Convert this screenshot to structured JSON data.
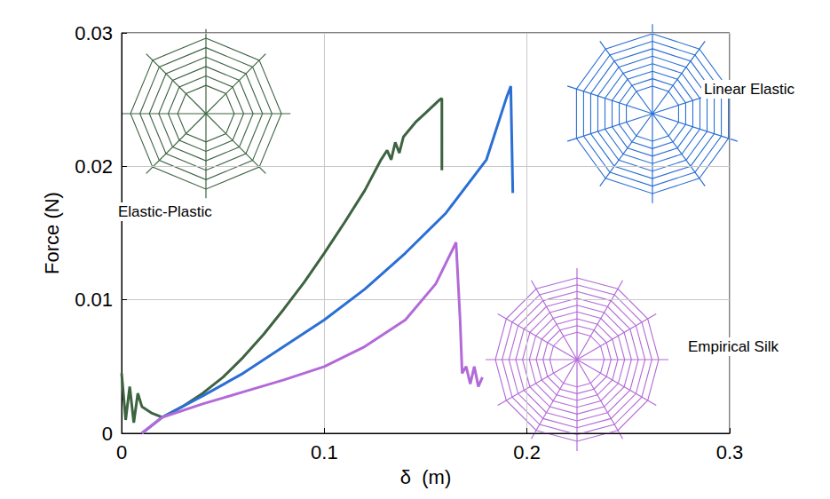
{
  "chart_data": {
    "type": "line",
    "xlabel": "δ  (m)",
    "ylabel": "Force (N)",
    "xlim": [
      0,
      0.3
    ],
    "xticks": [
      0,
      0.1,
      0.2,
      0.3
    ],
    "ylim": [
      0,
      0.03
    ],
    "yticks": [
      0,
      0.01,
      0.02,
      0.03
    ],
    "grid": true,
    "series": [
      {
        "name": "Elastic-Plastic",
        "color": "#3d6340",
        "x": [
          0,
          0.002,
          0.004,
          0.006,
          0.008,
          0.01,
          0.015,
          0.02,
          0.03,
          0.04,
          0.05,
          0.06,
          0.07,
          0.08,
          0.09,
          0.1,
          0.11,
          0.12,
          0.128,
          0.131,
          0.133,
          0.135,
          0.137,
          0.139,
          0.145,
          0.15,
          0.157,
          0.158,
          0.158
        ],
        "values": [
          0.0045,
          0.001,
          0.0035,
          0.0008,
          0.003,
          0.002,
          0.0015,
          0.0012,
          0.002,
          0.003,
          0.0042,
          0.0057,
          0.0074,
          0.0093,
          0.0113,
          0.0135,
          0.0158,
          0.0182,
          0.0205,
          0.0212,
          0.0205,
          0.0218,
          0.021,
          0.0222,
          0.0233,
          0.024,
          0.025,
          0.0251,
          0.0197
        ]
      },
      {
        "name": "Linear Elastic",
        "color": "#2b6fd4",
        "x": [
          0.01,
          0.02,
          0.04,
          0.06,
          0.08,
          0.1,
          0.12,
          0.14,
          0.16,
          0.18,
          0.19,
          0.192,
          0.193
        ],
        "values": [
          0,
          0.0012,
          0.0028,
          0.0045,
          0.0065,
          0.0085,
          0.0108,
          0.0135,
          0.0165,
          0.0205,
          0.0252,
          0.026,
          0.018
        ]
      },
      {
        "name": "Empirical Silk",
        "color": "#b36ad8",
        "x": [
          0.01,
          0.02,
          0.04,
          0.06,
          0.08,
          0.1,
          0.12,
          0.14,
          0.155,
          0.165,
          0.167,
          0.168,
          0.17,
          0.172,
          0.174,
          0.176,
          0.178
        ],
        "values": [
          0,
          0.0012,
          0.0022,
          0.0031,
          0.004,
          0.005,
          0.0065,
          0.0085,
          0.0112,
          0.0143,
          0.0085,
          0.0045,
          0.005,
          0.0037,
          0.005,
          0.0035,
          0.0042
        ]
      }
    ]
  }
}
